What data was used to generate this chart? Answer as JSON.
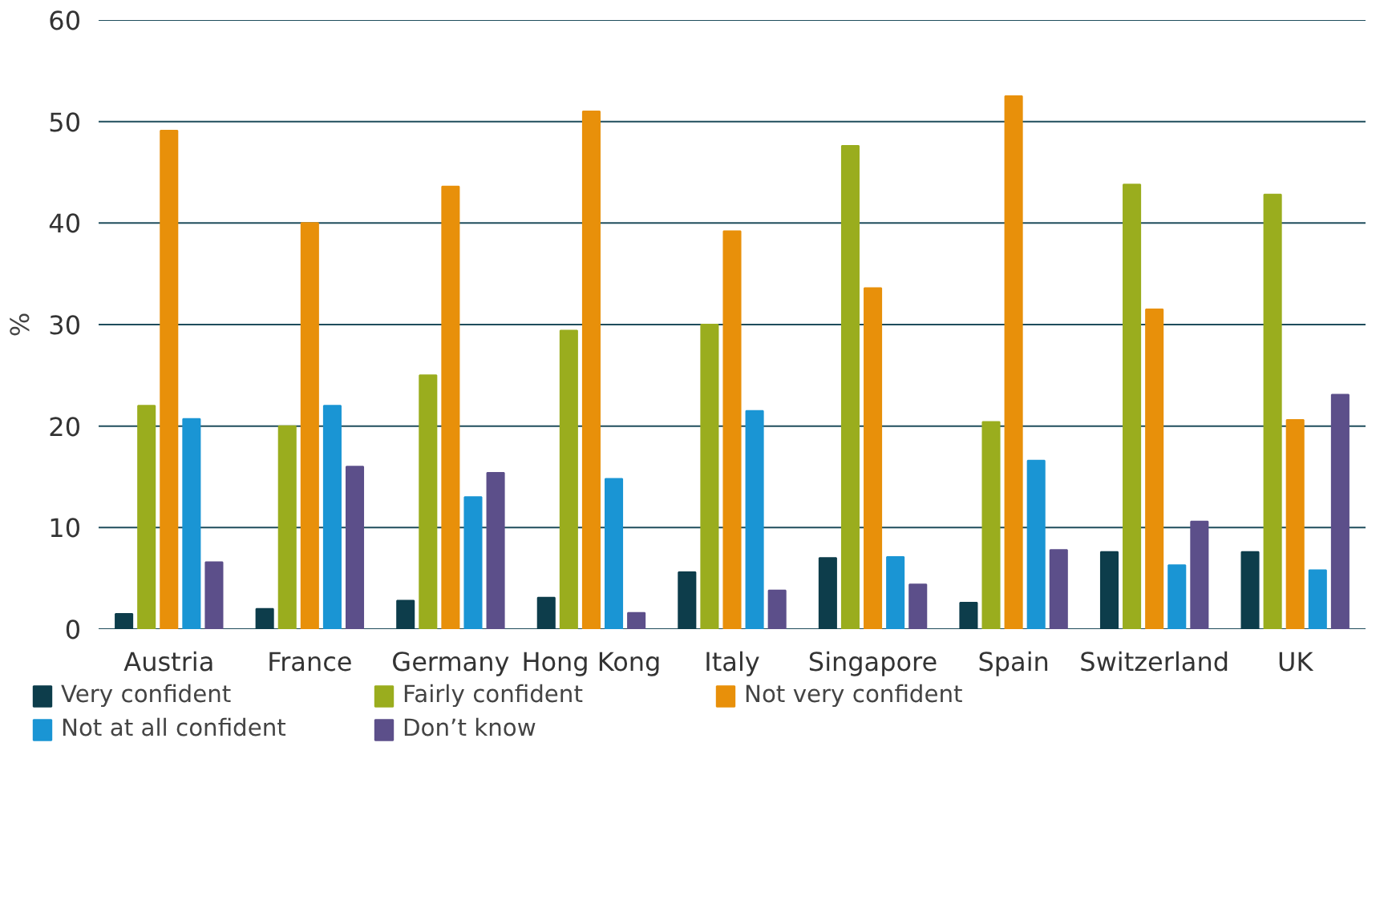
{
  "chart_data": {
    "type": "bar",
    "ylabel": "%",
    "categories": [
      "Austria",
      "France",
      "Germany",
      "Hong Kong",
      "Italy",
      "Singapore",
      "Spain",
      "Switzerland",
      "UK"
    ],
    "series": [
      {
        "name": "Very confident",
        "color": "#0d3d4b",
        "values": [
          1.5,
          2.0,
          2.8,
          3.1,
          5.6,
          7.0,
          2.6,
          7.6,
          7.6
        ]
      },
      {
        "name": "Fairly confident",
        "color": "#9aad1e",
        "values": [
          22.0,
          20.0,
          25.0,
          29.4,
          30.0,
          47.6,
          20.4,
          43.8,
          42.8
        ]
      },
      {
        "name": "Not very confident",
        "color": "#e8900a",
        "values": [
          49.1,
          40.0,
          43.6,
          51.0,
          39.2,
          33.6,
          52.5,
          31.5,
          20.6
        ]
      },
      {
        "name": "Not at all confident",
        "color": "#1a95d4",
        "values": [
          20.7,
          22.0,
          13.0,
          14.8,
          21.5,
          7.1,
          16.6,
          6.3,
          5.8
        ]
      },
      {
        "name": "Don’t know",
        "color": "#5c4f8a",
        "values": [
          6.6,
          16.0,
          15.4,
          1.6,
          3.8,
          4.4,
          7.8,
          10.6,
          23.1
        ]
      }
    ],
    "ylim": [
      0,
      60
    ],
    "yticks": [
      0,
      10,
      20,
      30,
      40,
      50,
      60
    ],
    "grid": "y",
    "legend": "bottom"
  }
}
